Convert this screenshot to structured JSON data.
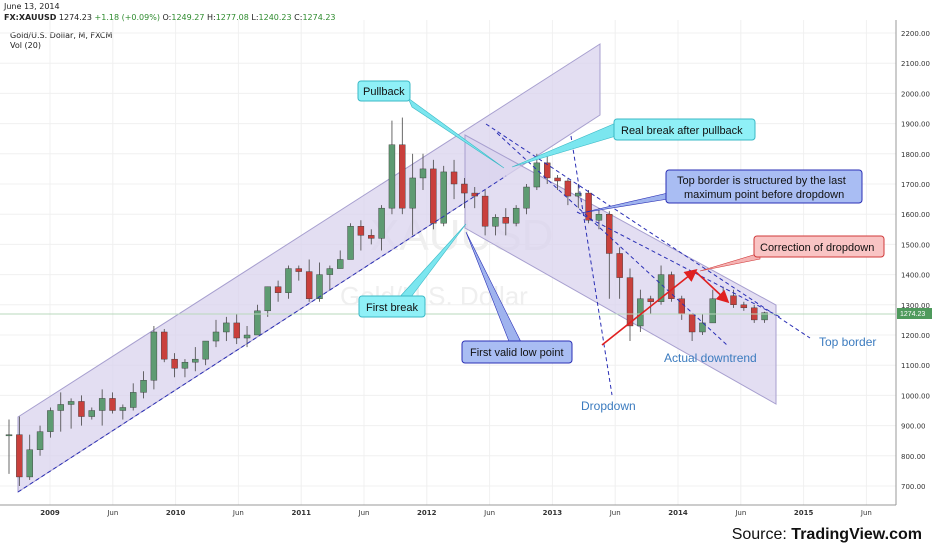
{
  "header": {
    "date": "June 13, 2014",
    "symbol_line": "FX:XAUUSD",
    "last": "1274.23",
    "change": "+1.18 (+0.09%)",
    "open_label": "O:",
    "open": "1249.27",
    "high_label": "H:",
    "high": "1277.08",
    "low_label": "L:",
    "low": "1240.23",
    "close_label": "C:",
    "close": "1274.23",
    "instrument": "Gold/U.S. Dollar, M, FXCM",
    "volume": "Vol (20)"
  },
  "watermark": {
    "symbol": "XAUUSD",
    "name": "Gold/U.S. Dollar"
  },
  "source": {
    "prefix": "Source: ",
    "site": "TradingView.com"
  },
  "chart_data": {
    "type": "candlestick",
    "interval": "monthly",
    "ylim": [
      650,
      2220
    ],
    "y_ticks": [
      "700.00",
      "800.00",
      "900.00",
      "1000.00",
      "1100.00",
      "1200.00",
      "1300.00",
      "1400.00",
      "1500.00",
      "1600.00",
      "1700.00",
      "1800.00",
      "1900.00",
      "2000.00",
      "2100.00",
      "2200.00"
    ],
    "x_ticks": [
      "2009",
      "Jun",
      "2010",
      "Jun",
      "2011",
      "Jun",
      "2012",
      "Jun",
      "2013",
      "Jun",
      "2014",
      "Jun",
      "2015",
      "Jun"
    ],
    "last_price_label": "1274.23",
    "colors": {
      "up": "#5e9b72",
      "down": "#c9403c",
      "channel": "#c9c2e3",
      "trend_line": "#2a2fb5"
    },
    "candles": [
      {
        "o": 870,
        "h": 920,
        "l": 740,
        "c": 870
      },
      {
        "o": 870,
        "h": 930,
        "l": 700,
        "c": 730
      },
      {
        "o": 730,
        "h": 870,
        "l": 720,
        "c": 820
      },
      {
        "o": 820,
        "h": 900,
        "l": 800,
        "c": 880
      },
      {
        "o": 880,
        "h": 960,
        "l": 860,
        "c": 950
      },
      {
        "o": 950,
        "h": 1010,
        "l": 880,
        "c": 970
      },
      {
        "o": 970,
        "h": 990,
        "l": 890,
        "c": 980
      },
      {
        "o": 980,
        "h": 1000,
        "l": 900,
        "c": 930
      },
      {
        "o": 930,
        "h": 960,
        "l": 920,
        "c": 950
      },
      {
        "o": 950,
        "h": 1020,
        "l": 900,
        "c": 990
      },
      {
        "o": 990,
        "h": 1010,
        "l": 940,
        "c": 950
      },
      {
        "o": 950,
        "h": 970,
        "l": 920,
        "c": 960
      },
      {
        "o": 960,
        "h": 1040,
        "l": 950,
        "c": 1010
      },
      {
        "o": 1010,
        "h": 1080,
        "l": 990,
        "c": 1050
      },
      {
        "o": 1050,
        "h": 1230,
        "l": 1020,
        "c": 1210
      },
      {
        "o": 1210,
        "h": 1220,
        "l": 1110,
        "c": 1120
      },
      {
        "o": 1120,
        "h": 1140,
        "l": 1060,
        "c": 1090
      },
      {
        "o": 1090,
        "h": 1120,
        "l": 1060,
        "c": 1110
      },
      {
        "o": 1110,
        "h": 1160,
        "l": 1080,
        "c": 1120
      },
      {
        "o": 1120,
        "h": 1180,
        "l": 1100,
        "c": 1180
      },
      {
        "o": 1180,
        "h": 1250,
        "l": 1160,
        "c": 1210
      },
      {
        "o": 1210,
        "h": 1260,
        "l": 1180,
        "c": 1240
      },
      {
        "o": 1240,
        "h": 1270,
        "l": 1170,
        "c": 1190
      },
      {
        "o": 1190,
        "h": 1230,
        "l": 1160,
        "c": 1200
      },
      {
        "o": 1200,
        "h": 1300,
        "l": 1200,
        "c": 1280
      },
      {
        "o": 1280,
        "h": 1360,
        "l": 1260,
        "c": 1360
      },
      {
        "o": 1360,
        "h": 1380,
        "l": 1310,
        "c": 1340
      },
      {
        "o": 1340,
        "h": 1430,
        "l": 1320,
        "c": 1420
      },
      {
        "o": 1420,
        "h": 1430,
        "l": 1380,
        "c": 1410
      },
      {
        "o": 1410,
        "h": 1450,
        "l": 1310,
        "c": 1320
      },
      {
        "o": 1320,
        "h": 1440,
        "l": 1310,
        "c": 1400
      },
      {
        "o": 1400,
        "h": 1430,
        "l": 1350,
        "c": 1420
      },
      {
        "o": 1420,
        "h": 1480,
        "l": 1420,
        "c": 1450
      },
      {
        "o": 1450,
        "h": 1570,
        "l": 1450,
        "c": 1560
      },
      {
        "o": 1560,
        "h": 1580,
        "l": 1480,
        "c": 1530
      },
      {
        "o": 1530,
        "h": 1550,
        "l": 1500,
        "c": 1520
      },
      {
        "o": 1520,
        "h": 1630,
        "l": 1480,
        "c": 1620
      },
      {
        "o": 1620,
        "h": 1910,
        "l": 1600,
        "c": 1830
      },
      {
        "o": 1830,
        "h": 1920,
        "l": 1600,
        "c": 1620
      },
      {
        "o": 1620,
        "h": 1800,
        "l": 1530,
        "c": 1720
      },
      {
        "o": 1720,
        "h": 1800,
        "l": 1680,
        "c": 1750
      },
      {
        "o": 1750,
        "h": 1780,
        "l": 1550,
        "c": 1570
      },
      {
        "o": 1570,
        "h": 1760,
        "l": 1560,
        "c": 1740
      },
      {
        "o": 1740,
        "h": 1780,
        "l": 1650,
        "c": 1700
      },
      {
        "o": 1700,
        "h": 1720,
        "l": 1620,
        "c": 1670
      },
      {
        "o": 1670,
        "h": 1690,
        "l": 1620,
        "c": 1660
      },
      {
        "o": 1660,
        "h": 1680,
        "l": 1530,
        "c": 1560
      },
      {
        "o": 1560,
        "h": 1600,
        "l": 1530,
        "c": 1590
      },
      {
        "o": 1590,
        "h": 1620,
        "l": 1530,
        "c": 1570
      },
      {
        "o": 1570,
        "h": 1630,
        "l": 1560,
        "c": 1620
      },
      {
        "o": 1620,
        "h": 1700,
        "l": 1600,
        "c": 1690
      },
      {
        "o": 1690,
        "h": 1800,
        "l": 1680,
        "c": 1770
      },
      {
        "o": 1770,
        "h": 1800,
        "l": 1700,
        "c": 1720
      },
      {
        "o": 1720,
        "h": 1730,
        "l": 1680,
        "c": 1710
      },
      {
        "o": 1710,
        "h": 1720,
        "l": 1630,
        "c": 1660
      },
      {
        "o": 1660,
        "h": 1700,
        "l": 1620,
        "c": 1670
      },
      {
        "o": 1670,
        "h": 1680,
        "l": 1570,
        "c": 1580
      },
      {
        "o": 1580,
        "h": 1620,
        "l": 1550,
        "c": 1600
      },
      {
        "o": 1600,
        "h": 1610,
        "l": 1320,
        "c": 1470
      },
      {
        "o": 1470,
        "h": 1490,
        "l": 1320,
        "c": 1390
      },
      {
        "o": 1390,
        "h": 1420,
        "l": 1180,
        "c": 1230
      },
      {
        "o": 1230,
        "h": 1350,
        "l": 1210,
        "c": 1320
      },
      {
        "o": 1320,
        "h": 1330,
        "l": 1270,
        "c": 1310
      },
      {
        "o": 1310,
        "h": 1430,
        "l": 1300,
        "c": 1400
      },
      {
        "o": 1400,
        "h": 1410,
        "l": 1310,
        "c": 1320
      },
      {
        "o": 1320,
        "h": 1330,
        "l": 1250,
        "c": 1270
      },
      {
        "o": 1270,
        "h": 1270,
        "l": 1180,
        "c": 1210
      },
      {
        "o": 1210,
        "h": 1270,
        "l": 1200,
        "c": 1240
      },
      {
        "o": 1240,
        "h": 1350,
        "l": 1240,
        "c": 1320
      },
      {
        "o": 1320,
        "h": 1360,
        "l": 1320,
        "c": 1330
      },
      {
        "o": 1330,
        "h": 1350,
        "l": 1290,
        "c": 1300
      },
      {
        "o": 1300,
        "h": 1310,
        "l": 1280,
        "c": 1290
      },
      {
        "o": 1290,
        "h": 1300,
        "l": 1240,
        "c": 1250
      },
      {
        "o": 1250,
        "h": 1277,
        "l": 1240,
        "c": 1274
      }
    ],
    "annotations": [
      {
        "text": "Pullback",
        "style": "cyan"
      },
      {
        "text": "Real break after pullback",
        "style": "cyan"
      },
      {
        "text": "First break",
        "style": "cyan"
      },
      {
        "text": "Top border is structured by the last maximum point before dropdown",
        "line1": "Top border is structured by the last",
        "line2": "maximum point before dropdown",
        "style": "blue"
      },
      {
        "text": "First valid low point",
        "style": "blue"
      },
      {
        "text": "Correction of dropdown",
        "style": "red"
      }
    ],
    "labels": [
      {
        "text": "Top border"
      },
      {
        "text": "Actual downtrend"
      },
      {
        "text": "Dropdown"
      }
    ]
  }
}
